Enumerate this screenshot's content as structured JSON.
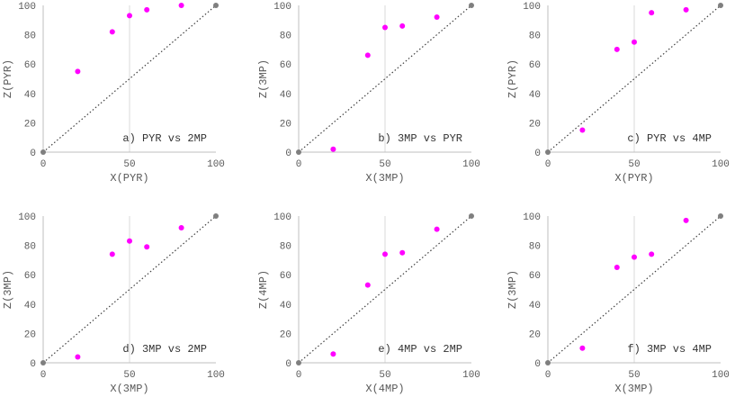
{
  "colors": {
    "point": "#ff00ff",
    "diagonal": "#404040",
    "end_marker": "#7f7f7f",
    "grid": "#d9d9d9",
    "axis": "#bfbfbf"
  },
  "chart_data": [
    {
      "type": "scatter",
      "label": "a) PYR vs 2MP",
      "xlabel": "X(PYR)",
      "ylabel": "Z(PYR)",
      "xlim": [
        0,
        100
      ],
      "ylim": [
        0,
        100
      ],
      "xticks": [
        "0",
        "50",
        "100"
      ],
      "yticks": [
        "0",
        "20",
        "40",
        "60",
        "80",
        "100"
      ],
      "grid": "vertical at x=50",
      "points": [
        {
          "x": 20,
          "y": 55
        },
        {
          "x": 40,
          "y": 82
        },
        {
          "x": 50,
          "y": 93
        },
        {
          "x": 60,
          "y": 97
        },
        {
          "x": 80,
          "y": 100
        }
      ],
      "reference_line": {
        "from": [
          0,
          0
        ],
        "to": [
          100,
          100
        ],
        "style": "dotted"
      }
    },
    {
      "type": "scatter",
      "label": "b) 3MP vs PYR",
      "xlabel": "X(3MP)",
      "ylabel": "Z(3MP)",
      "xlim": [
        0,
        100
      ],
      "ylim": [
        0,
        100
      ],
      "xticks": [
        "0",
        "50",
        "100"
      ],
      "yticks": [
        "0",
        "20",
        "40",
        "60",
        "80",
        "100"
      ],
      "grid": "vertical at x=50",
      "points": [
        {
          "x": 20,
          "y": 2
        },
        {
          "x": 40,
          "y": 66
        },
        {
          "x": 50,
          "y": 85
        },
        {
          "x": 60,
          "y": 86
        },
        {
          "x": 80,
          "y": 92
        }
      ],
      "reference_line": {
        "from": [
          0,
          0
        ],
        "to": [
          100,
          100
        ],
        "style": "dotted"
      }
    },
    {
      "type": "scatter",
      "label": "c) PYR vs 4MP",
      "xlabel": "X(PYR)",
      "ylabel": "Z(PYR)",
      "xlim": [
        0,
        100
      ],
      "ylim": [
        0,
        100
      ],
      "xticks": [
        "0",
        "50",
        "100"
      ],
      "yticks": [
        "0",
        "20",
        "40",
        "60",
        "80",
        "100"
      ],
      "grid": "vertical at x=50",
      "points": [
        {
          "x": 20,
          "y": 15
        },
        {
          "x": 40,
          "y": 70
        },
        {
          "x": 50,
          "y": 75
        },
        {
          "x": 60,
          "y": 95
        },
        {
          "x": 80,
          "y": 97
        }
      ],
      "reference_line": {
        "from": [
          0,
          0
        ],
        "to": [
          100,
          100
        ],
        "style": "dotted"
      }
    },
    {
      "type": "scatter",
      "label": "d) 3MP vs 2MP",
      "xlabel": "X(3MP)",
      "ylabel": "Z(3MP)",
      "xlim": [
        0,
        100
      ],
      "ylim": [
        0,
        100
      ],
      "xticks": [
        "0",
        "50",
        "100"
      ],
      "yticks": [
        "0",
        "20",
        "40",
        "60",
        "80",
        "100"
      ],
      "grid": "vertical at x=50",
      "points": [
        {
          "x": 20,
          "y": 4
        },
        {
          "x": 40,
          "y": 74
        },
        {
          "x": 50,
          "y": 83
        },
        {
          "x": 60,
          "y": 79
        },
        {
          "x": 80,
          "y": 92
        }
      ],
      "reference_line": {
        "from": [
          0,
          0
        ],
        "to": [
          100,
          100
        ],
        "style": "dotted"
      }
    },
    {
      "type": "scatter",
      "label": "e) 4MP vs 2MP",
      "xlabel": "X(4MP)",
      "ylabel": "Z(4MP)",
      "xlim": [
        0,
        100
      ],
      "ylim": [
        0,
        100
      ],
      "xticks": [
        "0",
        "50",
        "100"
      ],
      "yticks": [
        "0",
        "20",
        "40",
        "60",
        "80",
        "100"
      ],
      "grid": "vertical at x=50",
      "points": [
        {
          "x": 20,
          "y": 6
        },
        {
          "x": 40,
          "y": 53
        },
        {
          "x": 50,
          "y": 74
        },
        {
          "x": 60,
          "y": 75
        },
        {
          "x": 80,
          "y": 91
        }
      ],
      "reference_line": {
        "from": [
          0,
          0
        ],
        "to": [
          100,
          100
        ],
        "style": "dotted"
      }
    },
    {
      "type": "scatter",
      "label": "f) 3MP vs 4MP",
      "xlabel": "X(3MP)",
      "ylabel": "Z(3MP)",
      "xlim": [
        0,
        100
      ],
      "ylim": [
        0,
        100
      ],
      "xticks": [
        "0",
        "50",
        "100"
      ],
      "yticks": [
        "0",
        "20",
        "40",
        "60",
        "80",
        "100"
      ],
      "grid": "vertical at x=50",
      "points": [
        {
          "x": 20,
          "y": 10
        },
        {
          "x": 40,
          "y": 65
        },
        {
          "x": 50,
          "y": 72
        },
        {
          "x": 60,
          "y": 74
        },
        {
          "x": 80,
          "y": 97
        }
      ],
      "reference_line": {
        "from": [
          0,
          0
        ],
        "to": [
          100,
          100
        ],
        "style": "dotted"
      }
    }
  ]
}
